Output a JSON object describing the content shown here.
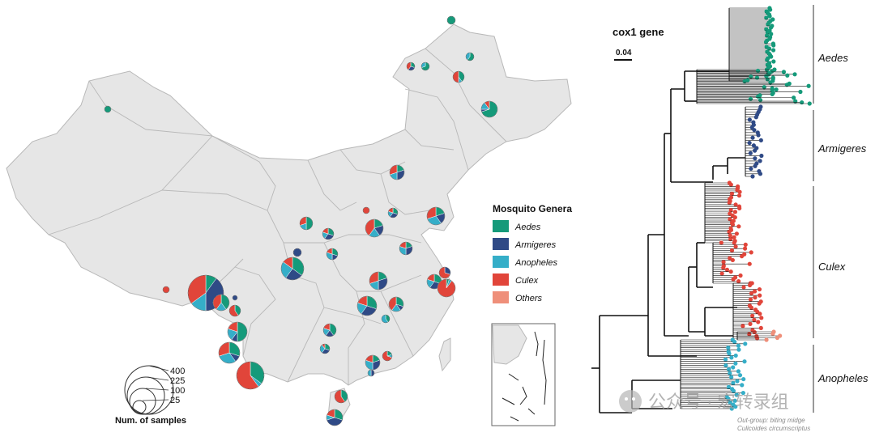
{
  "map": {
    "legend": {
      "title": "Mosquito Genera",
      "genera": [
        {
          "name": "Aedes",
          "color": "#159a7a"
        },
        {
          "name": "Armigeres",
          "color": "#2f4a86"
        },
        {
          "name": "Anopheles",
          "color": "#35aec8"
        },
        {
          "name": "Culex",
          "color": "#e1453a"
        },
        {
          "name": "Others",
          "color": "#ef8f7a"
        }
      ]
    },
    "size_legend": {
      "values": [
        "400",
        "225",
        "100",
        "25"
      ],
      "caption": "Num. of samples"
    }
  },
  "tree": {
    "gene_label": "cox1 gene",
    "scale_label": "0.04",
    "clades": [
      {
        "name": "Aedes",
        "color": "#159a7a"
      },
      {
        "name": "Armigeres",
        "color": "#2f4a86"
      },
      {
        "name": "Culex",
        "color": "#e1453a"
      },
      {
        "name": "Anopheles",
        "color": "#35aec8"
      }
    ],
    "outgroup_line1": "Out-group: biting midge",
    "outgroup_line2": "Culicoides circumscriptus"
  },
  "watermark": {
    "text": "公众号 · 宏转录组"
  },
  "colors": {
    "map_fill": "#e6e6e6",
    "map_border": "#b8b8b8",
    "tree_line": "#111111"
  }
}
